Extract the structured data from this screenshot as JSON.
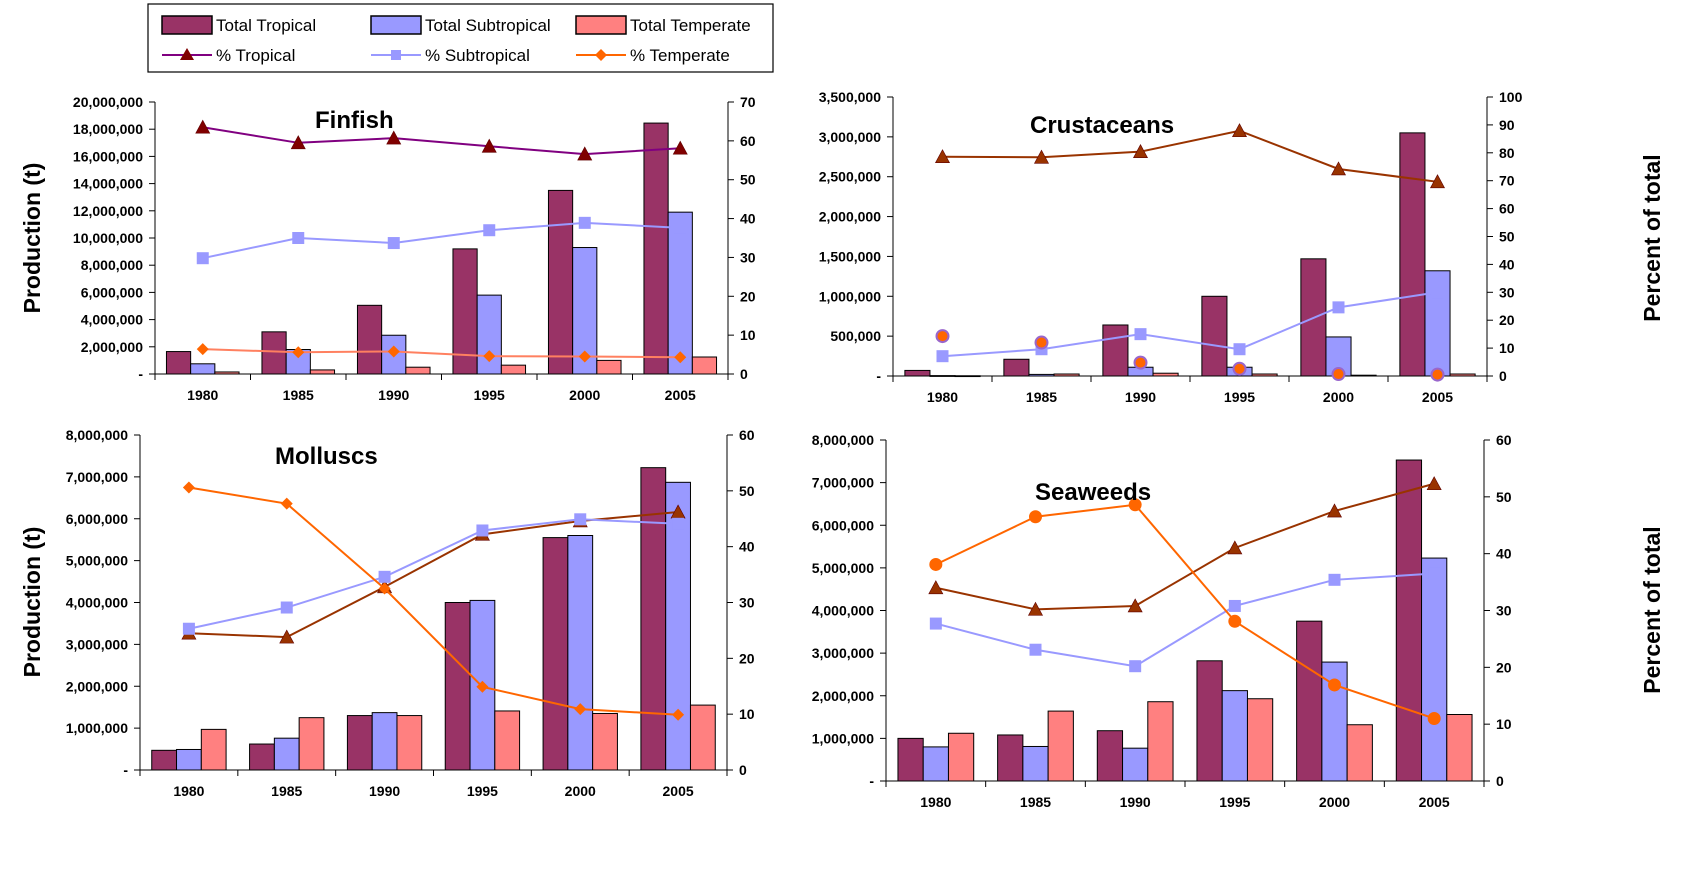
{
  "colors": {
    "tropical_bar": "#993366",
    "subtropical_bar": "#9999FF",
    "temperate_bar": "#FF8080",
    "tropical_line": "#800080",
    "tropical_line_alt": "#993300",
    "subtropical_line": "#9999FF",
    "temperate_line": "#FF6600",
    "temperate_line_light": "#FF8060"
  },
  "legend": {
    "items": [
      {
        "label": "Total Tropical",
        "kind": "bar",
        "color": "#993366"
      },
      {
        "label": "Total Subtropical",
        "kind": "bar",
        "color": "#9999FF"
      },
      {
        "label": "Total Temperate",
        "kind": "bar",
        "color": "#FF8080"
      },
      {
        "label": "% Tropical",
        "kind": "line",
        "marker": "triangle",
        "color": "#800080"
      },
      {
        "label": "% Subtropical",
        "kind": "line",
        "marker": "square",
        "color": "#9999FF"
      },
      {
        "label": "% Temperate",
        "kind": "line",
        "marker": "diamond",
        "color": "#FF6600"
      }
    ]
  },
  "chart_data": [
    {
      "type": "bar",
      "title": "Finfish",
      "ylabel": "Production (t)",
      "y2label": "",
      "categories": [
        "1980",
        "1985",
        "1990",
        "1995",
        "2000",
        "2005"
      ],
      "ylim": [
        0,
        20000000
      ],
      "y_ticks": [
        "-",
        "2,000,000",
        "4,000,000",
        "6,000,000",
        "8,000,000",
        "10,000,000",
        "12,000,000",
        "14,000,000",
        "16,000,000",
        "18,000,000",
        "20,000,000"
      ],
      "y2lim": [
        0,
        70
      ],
      "y2_ticks": [
        "0",
        "10",
        "20",
        "30",
        "40",
        "50",
        "60",
        "70"
      ],
      "series": [
        {
          "name": "Total Tropical",
          "values": [
            1650000,
            3100000,
            5050000,
            9200000,
            13500000,
            18450000
          ]
        },
        {
          "name": "Total Subtropical",
          "values": [
            750000,
            1800000,
            2850000,
            5800000,
            9300000,
            11900000
          ]
        },
        {
          "name": "Total Temperate",
          "values": [
            150000,
            300000,
            500000,
            650000,
            1000000,
            1250000
          ]
        }
      ],
      "line_series": [
        {
          "name": "% Tropical",
          "values": [
            63.5,
            59.5,
            60.7,
            58.6,
            56.6,
            58.1
          ],
          "marker": "triangle",
          "color": "#800080",
          "mcolor": "#800000"
        },
        {
          "name": "% Subtropical",
          "values": [
            29.8,
            35.0,
            33.7,
            37.0,
            38.9,
            37.6
          ],
          "marker": "square",
          "color": "#9999FF",
          "mcolor": "#9999FF"
        },
        {
          "name": "% Temperate",
          "values": [
            6.4,
            5.6,
            5.8,
            4.6,
            4.5,
            4.3
          ],
          "marker": "diamond",
          "color": "#FF8060",
          "mcolor": "#FF6600"
        }
      ]
    },
    {
      "type": "bar",
      "title": "Crustaceans",
      "ylabel": "",
      "y2label": "Percent of total",
      "categories": [
        "1980",
        "1985",
        "1990",
        "1995",
        "2000",
        "2005"
      ],
      "ylim": [
        0,
        3500000
      ],
      "y_ticks": [
        "-",
        "500,000",
        "1,000,000",
        "1,500,000",
        "2,000,000",
        "2,500,000",
        "3,000,000",
        "3,500,000"
      ],
      "y2lim": [
        0,
        100
      ],
      "y2_ticks": [
        "0",
        "10",
        "20",
        "30",
        "40",
        "50",
        "60",
        "70",
        "80",
        "90",
        "100"
      ],
      "series": [
        {
          "name": "Total Tropical",
          "values": [
            70000,
            210000,
            640000,
            1000000,
            1470000,
            3050000
          ]
        },
        {
          "name": "Total Subtropical",
          "values": [
            5000,
            20000,
            110000,
            110000,
            490000,
            1320000
          ]
        },
        {
          "name": "Total Temperate",
          "values": [
            3000,
            25000,
            35000,
            25000,
            10000,
            25000
          ]
        }
      ],
      "line_series": [
        {
          "name": "% Tropical",
          "values": [
            78.6,
            78.4,
            80.4,
            87.9,
            74.2,
            69.6
          ],
          "marker": "triangle",
          "color": "#993300",
          "mcolor": "#993300"
        },
        {
          "name": "% Subtropical",
          "values": [
            7.1,
            9.6,
            15.0,
            9.6,
            24.6,
            30.0
          ],
          "marker": "square",
          "color": "#9999FF",
          "mcolor": "#9999FF"
        },
        {
          "name": "% Temperate",
          "values": [
            14.3,
            12.0,
            4.8,
            2.6,
            0.7,
            0.5
          ],
          "marker": "circle",
          "color": "none",
          "mcolor": "#FF6600"
        }
      ]
    },
    {
      "type": "bar",
      "title": "Molluscs",
      "ylabel": "Production (t)",
      "y2label": "",
      "categories": [
        "1980",
        "1985",
        "1990",
        "1995",
        "2000",
        "2005"
      ],
      "ylim": [
        0,
        8000000
      ],
      "y_ticks": [
        "-",
        "1,000,000",
        "2,000,000",
        "3,000,000",
        "4,000,000",
        "5,000,000",
        "6,000,000",
        "7,000,000",
        "8,000,000"
      ],
      "y2lim": [
        0,
        60
      ],
      "y2_ticks": [
        "0",
        "10",
        "20",
        "30",
        "40",
        "50",
        "60"
      ],
      "series": [
        {
          "name": "Total Tropical",
          "values": [
            470000,
            620000,
            1300000,
            4000000,
            5550000,
            7220000
          ]
        },
        {
          "name": "Total Subtropical",
          "values": [
            490000,
            760000,
            1370000,
            4050000,
            5600000,
            6870000
          ]
        },
        {
          "name": "Total Temperate",
          "values": [
            970000,
            1250000,
            1300000,
            1410000,
            1350000,
            1550000
          ]
        }
      ],
      "line_series": [
        {
          "name": "% Tropical",
          "values": [
            24.5,
            23.8,
            32.8,
            42.2,
            44.6,
            46.2
          ],
          "marker": "triangle",
          "color": "#993300",
          "mcolor": "#993300"
        },
        {
          "name": "% Subtropical",
          "values": [
            25.3,
            29.1,
            34.6,
            42.9,
            44.9,
            44.1
          ],
          "marker": "square",
          "color": "#9999FF",
          "mcolor": "#9999FF"
        },
        {
          "name": "% Temperate",
          "values": [
            50.6,
            47.7,
            32.5,
            14.9,
            10.9,
            9.9
          ],
          "marker": "diamond",
          "color": "#FF6600",
          "mcolor": "#FF6600"
        }
      ]
    },
    {
      "type": "bar",
      "title": "Seaweeds",
      "ylabel": "",
      "y2label": "Percent of total",
      "categories": [
        "1980",
        "1985",
        "1990",
        "1995",
        "2000",
        "2005"
      ],
      "ylim": [
        0,
        8000000
      ],
      "y_ticks": [
        "-",
        "1,000,000",
        "2,000,000",
        "3,000,000",
        "4,000,000",
        "5,000,000",
        "6,000,000",
        "7,000,000",
        "8,000,000"
      ],
      "y2lim": [
        0,
        60
      ],
      "y2_ticks": [
        "0",
        "10",
        "20",
        "30",
        "40",
        "50",
        "60"
      ],
      "series": [
        {
          "name": "Total Tropical",
          "values": [
            1000000,
            1080000,
            1180000,
            2820000,
            3750000,
            7530000
          ]
        },
        {
          "name": "Total Subtropical",
          "values": [
            800000,
            810000,
            770000,
            2120000,
            2790000,
            5230000
          ]
        },
        {
          "name": "Total Temperate",
          "values": [
            1120000,
            1640000,
            1860000,
            1930000,
            1320000,
            1560000
          ]
        }
      ],
      "line_series": [
        {
          "name": "% Tropical",
          "values": [
            34.0,
            30.2,
            30.8,
            41.0,
            47.5,
            52.3
          ],
          "marker": "triangle",
          "color": "#993300",
          "mcolor": "#993300"
        },
        {
          "name": "% Subtropical",
          "values": [
            27.7,
            23.1,
            20.2,
            30.8,
            35.4,
            36.5
          ],
          "marker": "square",
          "color": "#9999FF",
          "mcolor": "#9999FF"
        },
        {
          "name": "% Temperate",
          "values": [
            38.1,
            46.5,
            48.6,
            28.1,
            16.9,
            11.0
          ],
          "marker": "circle",
          "color": "#FF6600",
          "mcolor": "#FF6600"
        }
      ]
    }
  ]
}
